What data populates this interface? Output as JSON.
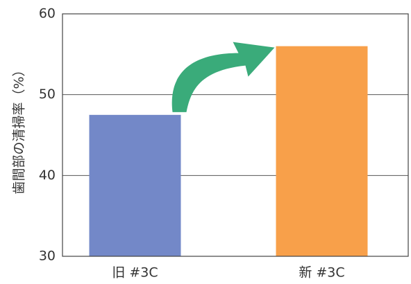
{
  "chart_data": {
    "type": "bar",
    "title": "",
    "xlabel": "",
    "ylabel": "歯間部の清掃率（%）",
    "categories": [
      "旧 #3C",
      "新 #3C"
    ],
    "values": [
      47.5,
      56
    ],
    "ylim": [
      30,
      60
    ],
    "yticks": [
      "30",
      "40",
      "50",
      "60"
    ],
    "grid": true,
    "bar_colors": [
      "#7388c8",
      "#f8a04a"
    ],
    "annotation": {
      "type": "arrow",
      "from": "旧 #3C",
      "to": "新 #3C",
      "color": "#3aab7a"
    }
  }
}
